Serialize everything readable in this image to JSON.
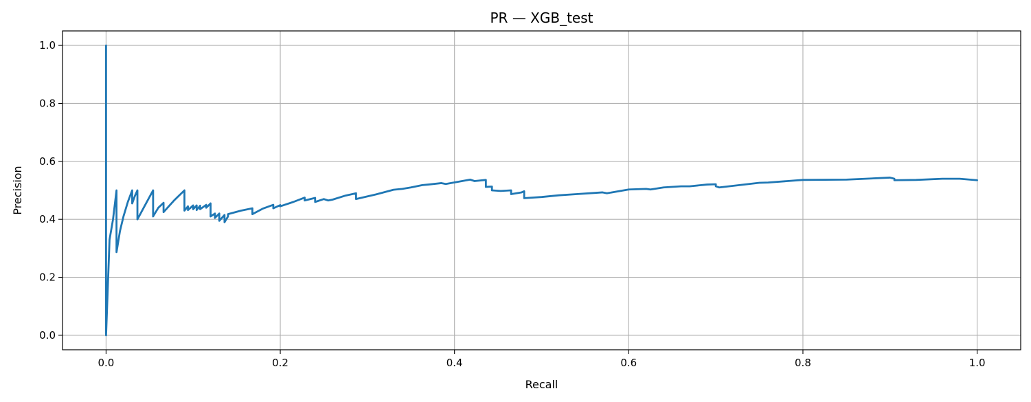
{
  "chart_data": {
    "type": "line",
    "title": "PR — XGB_test",
    "xlabel": "Recall",
    "ylabel": "Precision",
    "xlim": [
      -0.05,
      1.05
    ],
    "ylim": [
      -0.05,
      1.05
    ],
    "xticks": [
      0.0,
      0.2,
      0.4,
      0.6,
      0.8,
      1.0
    ],
    "xtick_labels": [
      "0.0",
      "0.2",
      "0.4",
      "0.6",
      "0.8",
      "1.0"
    ],
    "yticks": [
      0.0,
      0.2,
      0.4,
      0.6,
      0.8,
      1.0
    ],
    "ytick_labels": [
      "0.0",
      "0.2",
      "0.4",
      "0.6",
      "0.8",
      "1.0"
    ],
    "grid": true,
    "legend": "none",
    "series": [
      {
        "color": "#1f77b4",
        "x": [
          0.0,
          0.0,
          0.0,
          0.004,
          0.008,
          0.012,
          0.012,
          0.016,
          0.02,
          0.025,
          0.03,
          0.03,
          0.033,
          0.036,
          0.036,
          0.045,
          0.054,
          0.054,
          0.06,
          0.066,
          0.066,
          0.078,
          0.09,
          0.09,
          0.094,
          0.094,
          0.1,
          0.1,
          0.104,
          0.104,
          0.108,
          0.108,
          0.115,
          0.115,
          0.12,
          0.12,
          0.125,
          0.125,
          0.13,
          0.13,
          0.136,
          0.136,
          0.14,
          0.14,
          0.155,
          0.168,
          0.168,
          0.18,
          0.192,
          0.192,
          0.2,
          0.2,
          0.215,
          0.228,
          0.228,
          0.24,
          0.24,
          0.25,
          0.255,
          0.26,
          0.275,
          0.287,
          0.287,
          0.31,
          0.33,
          0.34,
          0.35,
          0.363,
          0.37,
          0.385,
          0.39,
          0.418,
          0.423,
          0.436,
          0.436,
          0.443,
          0.443,
          0.453,
          0.465,
          0.465,
          0.477,
          0.48,
          0.48,
          0.5,
          0.52,
          0.54,
          0.56,
          0.57,
          0.575,
          0.6,
          0.62,
          0.625,
          0.64,
          0.66,
          0.67,
          0.69,
          0.7,
          0.7,
          0.704,
          0.75,
          0.76,
          0.8,
          0.85,
          0.9,
          0.905,
          0.905,
          0.93,
          0.96,
          0.98,
          1.0
        ],
        "y": [
          0.0,
          1.0,
          0.0,
          0.33,
          0.4,
          0.5,
          0.287,
          0.36,
          0.41,
          0.46,
          0.5,
          0.455,
          0.48,
          0.5,
          0.4,
          0.45,
          0.5,
          0.41,
          0.44,
          0.457,
          0.425,
          0.465,
          0.5,
          0.43,
          0.445,
          0.432,
          0.448,
          0.435,
          0.448,
          0.432,
          0.447,
          0.435,
          0.45,
          0.44,
          0.455,
          0.41,
          0.42,
          0.405,
          0.42,
          0.395,
          0.415,
          0.39,
          0.41,
          0.418,
          0.43,
          0.438,
          0.418,
          0.437,
          0.45,
          0.438,
          0.449,
          0.445,
          0.46,
          0.475,
          0.465,
          0.474,
          0.46,
          0.47,
          0.465,
          0.468,
          0.482,
          0.49,
          0.47,
          0.486,
          0.502,
          0.505,
          0.51,
          0.518,
          0.52,
          0.525,
          0.522,
          0.537,
          0.532,
          0.536,
          0.512,
          0.513,
          0.5,
          0.498,
          0.5,
          0.487,
          0.493,
          0.497,
          0.473,
          0.477,
          0.483,
          0.487,
          0.491,
          0.493,
          0.49,
          0.503,
          0.505,
          0.503,
          0.51,
          0.514,
          0.514,
          0.52,
          0.521,
          0.514,
          0.51,
          0.526,
          0.527,
          0.536,
          0.537,
          0.544,
          0.54,
          0.535,
          0.536,
          0.54,
          0.54,
          0.535
        ]
      }
    ]
  }
}
